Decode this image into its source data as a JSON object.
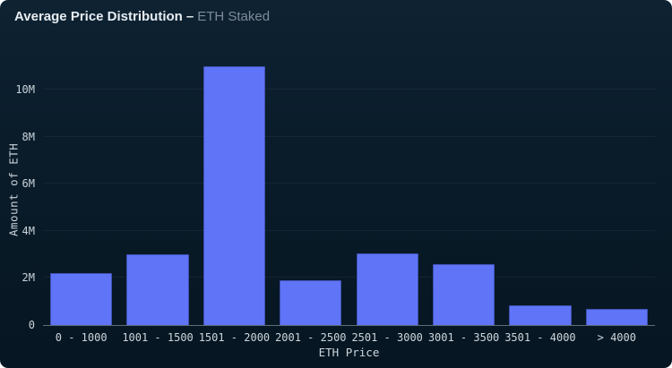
{
  "header": {
    "title": "Average Price Distribution",
    "separator": "–",
    "subtitle": "ETH Staked"
  },
  "chart_data": {
    "type": "bar",
    "title": "Average Price Distribution – ETH Staked",
    "categories": [
      "0 - 1000",
      "1001 - 1500",
      "1501 - 2000",
      "2001 - 2500",
      "2501 - 3000",
      "3001 - 3500",
      "3501 - 4000",
      "> 4000"
    ],
    "values": [
      2.2,
      3.0,
      11.0,
      1.9,
      3.05,
      2.6,
      0.85,
      0.7
    ],
    "unit": "M",
    "xlabel": "ETH Price",
    "ylabel": "Amount of ETH",
    "ylim": [
      0,
      11.52
    ],
    "yticks": [
      {
        "value": 0,
        "label": "0"
      },
      {
        "value": 2,
        "label": "2M"
      },
      {
        "value": 4,
        "label": "4M"
      },
      {
        "value": 6,
        "label": "6M"
      },
      {
        "value": 8,
        "label": "8M"
      },
      {
        "value": 10,
        "label": "10M"
      }
    ],
    "grid": "horizontal-faint",
    "legend": "none",
    "bar_color": "#5f74f6"
  },
  "colors": {
    "bar": "#5f74f6",
    "background_top": "#0e2232",
    "background_bottom": "#061622",
    "axis_line": "#a5b4be",
    "tick_text": "#c9d3da",
    "title_text": "#e7edf2",
    "subtitle_text": "#7e8c98"
  }
}
